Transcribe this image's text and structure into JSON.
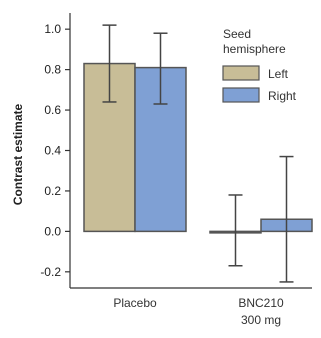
{
  "chart_data": {
    "type": "bar",
    "categories": [
      "Placebo",
      "BNC210\n300 mg"
    ],
    "ylabel": "Contrast estimate",
    "ylim": [
      -0.28,
      1.08
    ],
    "yticks": [
      -0.2,
      0.0,
      0.2,
      0.4,
      0.6,
      0.8,
      1.0
    ],
    "ytick_labels": [
      "-0.2",
      "0.0",
      "0.2",
      "0.4",
      "0.6",
      "0.8",
      "1.0"
    ],
    "legend": {
      "title": "Seed\nhemisphere",
      "position": "top-right"
    },
    "series": [
      {
        "name": "Left",
        "color": "#c8bd97",
        "values": [
          0.83,
          0.0
        ],
        "err_low": [
          0.64,
          -0.17
        ],
        "err_high": [
          1.02,
          0.18
        ]
      },
      {
        "name": "Right",
        "color": "#7fa0d4",
        "values": [
          0.81,
          0.06
        ],
        "err_low": [
          0.63,
          -0.25
        ],
        "err_high": [
          0.98,
          0.37
        ]
      }
    ]
  }
}
